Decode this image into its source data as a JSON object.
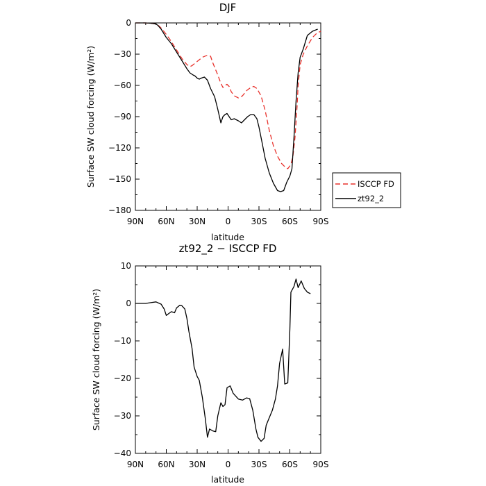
{
  "chart_data": [
    {
      "type": "line",
      "title": "DJF",
      "xlabel": "latitude",
      "ylabel": "Surface SW cloud forcing (W/m²)",
      "xlim": [
        90,
        -90
      ],
      "ylim": [
        -180,
        0
      ],
      "x_ticks": [
        {
          "value": 90,
          "label": "90N"
        },
        {
          "value": 60,
          "label": "60N"
        },
        {
          "value": 30,
          "label": "30N"
        },
        {
          "value": 0,
          "label": "0"
        },
        {
          "value": -30,
          "label": "30S"
        },
        {
          "value": -60,
          "label": "60S"
        },
        {
          "value": -90,
          "label": "90S"
        }
      ],
      "y_ticks": [
        {
          "value": 0,
          "label": "0"
        },
        {
          "value": -30,
          "label": "−30"
        },
        {
          "value": -60,
          "label": "−60"
        },
        {
          "value": -90,
          "label": "−90"
        },
        {
          "value": -120,
          "label": "−120"
        },
        {
          "value": -150,
          "label": "−150"
        },
        {
          "value": -180,
          "label": "−180"
        }
      ],
      "legend": "right",
      "series": [
        {
          "name": "ISCCP FD",
          "color": "#e8302a",
          "dash": true,
          "points": [
            [
              90,
              0
            ],
            [
              80,
              0
            ],
            [
              75,
              -0.3
            ],
            [
              70,
              -1
            ],
            [
              67,
              -3
            ],
            [
              65,
              -5
            ],
            [
              60,
              -11
            ],
            [
              55,
              -18
            ],
            [
              50,
              -26
            ],
            [
              45,
              -34
            ],
            [
              40,
              -40
            ],
            [
              37,
              -42
            ],
            [
              35,
              -41
            ],
            [
              30,
              -37
            ],
            [
              25,
              -33
            ],
            [
              20,
              -31
            ],
            [
              17,
              -32
            ],
            [
              15,
              -38
            ],
            [
              10,
              -50
            ],
            [
              7,
              -58
            ],
            [
              5,
              -62
            ],
            [
              3,
              -60
            ],
            [
              1,
              -59
            ],
            [
              -1,
              -61
            ],
            [
              -3,
              -66
            ],
            [
              -6,
              -70
            ],
            [
              -10,
              -72
            ],
            [
              -14,
              -70
            ],
            [
              -18,
              -65
            ],
            [
              -22,
              -62
            ],
            [
              -25,
              -61
            ],
            [
              -28,
              -63
            ],
            [
              -32,
              -70
            ],
            [
              -36,
              -84
            ],
            [
              -40,
              -103
            ],
            [
              -44,
              -118
            ],
            [
              -48,
              -128
            ],
            [
              -52,
              -135
            ],
            [
              -56,
              -139
            ],
            [
              -58,
              -140
            ],
            [
              -61,
              -136
            ],
            [
              -63,
              -128
            ],
            [
              -65,
              -110
            ],
            [
              -67,
              -80
            ],
            [
              -68,
              -60
            ],
            [
              -70,
              -40
            ],
            [
              -73,
              -30
            ],
            [
              -77,
              -22
            ],
            [
              -82,
              -14
            ],
            [
              -86,
              -10
            ],
            [
              -90,
              -8
            ]
          ]
        },
        {
          "name": "zt92_2",
          "color": "#000000",
          "dash": false,
          "points": [
            [
              90,
              0
            ],
            [
              80,
              0
            ],
            [
              75,
              -0.3
            ],
            [
              70,
              -1
            ],
            [
              68,
              -2.5
            ],
            [
              65,
              -6
            ],
            [
              60,
              -14
            ],
            [
              55,
              -20
            ],
            [
              50,
              -28
            ],
            [
              45,
              -36
            ],
            [
              40,
              -44
            ],
            [
              37,
              -48
            ],
            [
              34,
              -50
            ],
            [
              32,
              -51
            ],
            [
              30,
              -53
            ],
            [
              28,
              -54
            ],
            [
              26,
              -53
            ],
            [
              23,
              -52
            ],
            [
              20,
              -55
            ],
            [
              17,
              -63
            ],
            [
              13,
              -71
            ],
            [
              10,
              -83
            ],
            [
              7,
              -96
            ],
            [
              5,
              -90
            ],
            [
              3,
              -88
            ],
            [
              1,
              -87
            ],
            [
              -1,
              -90
            ],
            [
              -3,
              -93
            ],
            [
              -6,
              -92
            ],
            [
              -10,
              -94
            ],
            [
              -13,
              -96
            ],
            [
              -16,
              -93
            ],
            [
              -19,
              -90
            ],
            [
              -22,
              -88
            ],
            [
              -25,
              -88
            ],
            [
              -28,
              -92
            ],
            [
              -30,
              -100
            ],
            [
              -33,
              -115
            ],
            [
              -36,
              -130
            ],
            [
              -40,
              -144
            ],
            [
              -44,
              -154
            ],
            [
              -48,
              -161
            ],
            [
              -51,
              -162
            ],
            [
              -54,
              -161
            ],
            [
              -57,
              -153
            ],
            [
              -60,
              -147
            ],
            [
              -62,
              -140
            ],
            [
              -64,
              -110
            ],
            [
              -66,
              -75
            ],
            [
              -68,
              -48
            ],
            [
              -70,
              -33
            ],
            [
              -73,
              -25
            ],
            [
              -77,
              -12
            ],
            [
              -82,
              -8
            ],
            [
              -87,
              -6
            ]
          ]
        }
      ]
    },
    {
      "type": "line",
      "title": "zt92_2 − ISCCP FD",
      "xlabel": "latitude",
      "ylabel": "Surface SW cloud forcing (W/m²)",
      "xlim": [
        90,
        -90
      ],
      "ylim": [
        -40,
        10
      ],
      "x_ticks": [
        {
          "value": 90,
          "label": "90N"
        },
        {
          "value": 60,
          "label": "60N"
        },
        {
          "value": 30,
          "label": "30N"
        },
        {
          "value": 0,
          "label": "0"
        },
        {
          "value": -30,
          "label": "30S"
        },
        {
          "value": -60,
          "label": "60S"
        },
        {
          "value": -90,
          "label": "90S"
        }
      ],
      "y_ticks": [
        {
          "value": 10,
          "label": "10"
        },
        {
          "value": 0,
          "label": "0"
        },
        {
          "value": -10,
          "label": "−10"
        },
        {
          "value": -20,
          "label": "−20"
        },
        {
          "value": -30,
          "label": "−30"
        },
        {
          "value": -40,
          "label": "−40"
        }
      ],
      "series": [
        {
          "name": "",
          "color": "#000000",
          "dash": false,
          "points": [
            [
              90,
              0
            ],
            [
              80,
              0
            ],
            [
              75,
              0.2
            ],
            [
              70,
              0.4
            ],
            [
              65,
              -0.2
            ],
            [
              62,
              -1.5
            ],
            [
              60,
              -3.2
            ],
            [
              57,
              -2.6
            ],
            [
              55,
              -2.2
            ],
            [
              52,
              -2.5
            ],
            [
              50,
              -1.2
            ],
            [
              47,
              -0.5
            ],
            [
              45,
              -0.6
            ],
            [
              42,
              -1.5
            ],
            [
              40,
              -4
            ],
            [
              38,
              -7.5
            ],
            [
              35,
              -12
            ],
            [
              33,
              -17
            ],
            [
              30,
              -19.5
            ],
            [
              28,
              -20.5
            ],
            [
              25,
              -25
            ],
            [
              22,
              -31
            ],
            [
              20,
              -35.7
            ],
            [
              18,
              -33.5
            ],
            [
              15,
              -34
            ],
            [
              12,
              -34.2
            ],
            [
              10,
              -30
            ],
            [
              7,
              -26.5
            ],
            [
              5,
              -27.5
            ],
            [
              3,
              -27
            ],
            [
              1,
              -22.5
            ],
            [
              -2,
              -22
            ],
            [
              -5,
              -24
            ],
            [
              -10,
              -25.5
            ],
            [
              -14,
              -25.8
            ],
            [
              -18,
              -25.2
            ],
            [
              -21,
              -25.4
            ],
            [
              -24,
              -28.5
            ],
            [
              -27,
              -33.5
            ],
            [
              -29,
              -35.7
            ],
            [
              -32,
              -36.8
            ],
            [
              -35,
              -36
            ],
            [
              -37,
              -32.5
            ],
            [
              -40,
              -30.5
            ],
            [
              -43,
              -28.5
            ],
            [
              -46,
              -25.5
            ],
            [
              -48,
              -22
            ],
            [
              -50,
              -16
            ],
            [
              -52,
              -13.5
            ],
            [
              -53,
              -12.2
            ],
            [
              -55,
              -21.5
            ],
            [
              -58,
              -21.2
            ],
            [
              -60,
              -7
            ],
            [
              -61,
              3
            ],
            [
              -64,
              4.5
            ],
            [
              -66,
              6.5
            ],
            [
              -68,
              4.2
            ],
            [
              -71,
              6
            ],
            [
              -74,
              4
            ],
            [
              -77,
              3
            ],
            [
              -80,
              2.6
            ]
          ]
        }
      ]
    }
  ]
}
